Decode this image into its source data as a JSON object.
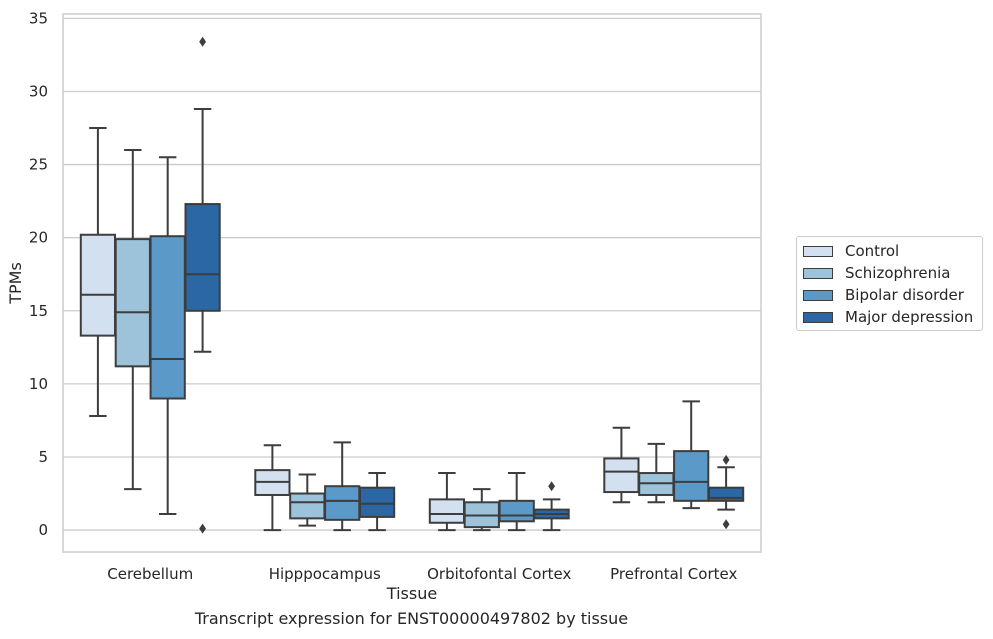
{
  "chart_data": {
    "type": "box",
    "title": "",
    "xlabel": "Tissue",
    "ylabel": "TPMs",
    "caption": "Transcript expression for ENST00000497802 by tissue",
    "ylim": [
      -1.5,
      35.3
    ],
    "yticks": [
      0,
      5,
      10,
      15,
      20,
      25,
      30,
      35
    ],
    "grid": true,
    "legend_position": "right",
    "categories": [
      "Cerebellum",
      "Hipppocampus",
      "Orbitofontal Cortex",
      "Prefrontal Cortex"
    ],
    "series": [
      {
        "name": "Control",
        "color": "#d2e0f0",
        "boxes": [
          {
            "whislo": 7.8,
            "q1": 13.3,
            "med": 16.1,
            "q3": 20.2,
            "whishi": 27.5,
            "fliers": []
          },
          {
            "whislo": 0.0,
            "q1": 2.4,
            "med": 3.3,
            "q3": 4.1,
            "whishi": 5.8,
            "fliers": []
          },
          {
            "whislo": 0.0,
            "q1": 0.5,
            "med": 1.1,
            "q3": 2.1,
            "whishi": 3.9,
            "fliers": []
          },
          {
            "whislo": 1.9,
            "q1": 2.6,
            "med": 4.0,
            "q3": 4.9,
            "whishi": 7.0,
            "fliers": []
          }
        ]
      },
      {
        "name": "Schizophrenia",
        "color": "#9cc3da",
        "boxes": [
          {
            "whislo": 2.8,
            "q1": 11.2,
            "med": 14.9,
            "q3": 19.9,
            "whishi": 26.0,
            "fliers": []
          },
          {
            "whislo": 0.3,
            "q1": 0.8,
            "med": 1.9,
            "q3": 2.5,
            "whishi": 3.8,
            "fliers": []
          },
          {
            "whislo": 0.0,
            "q1": 0.2,
            "med": 1.0,
            "q3": 1.9,
            "whishi": 2.8,
            "fliers": []
          },
          {
            "whislo": 1.9,
            "q1": 2.4,
            "med": 3.2,
            "q3": 3.9,
            "whishi": 5.9,
            "fliers": []
          }
        ]
      },
      {
        "name": "Bipolar disorder",
        "color": "#5b9ac8",
        "boxes": [
          {
            "whislo": 1.1,
            "q1": 9.0,
            "med": 11.7,
            "q3": 20.1,
            "whishi": 25.5,
            "fliers": []
          },
          {
            "whislo": 0.0,
            "q1": 0.7,
            "med": 2.0,
            "q3": 3.0,
            "whishi": 6.0,
            "fliers": []
          },
          {
            "whislo": 0.0,
            "q1": 0.6,
            "med": 1.0,
            "q3": 2.0,
            "whishi": 3.9,
            "fliers": []
          },
          {
            "whislo": 1.5,
            "q1": 2.0,
            "med": 3.3,
            "q3": 5.4,
            "whishi": 8.8,
            "fliers": []
          }
        ]
      },
      {
        "name": "Major depression",
        "color": "#2a67a4",
        "boxes": [
          {
            "whislo": 12.2,
            "q1": 15.0,
            "med": 17.5,
            "q3": 22.3,
            "whishi": 28.8,
            "fliers": [
              33.4,
              0.1
            ]
          },
          {
            "whislo": 0.0,
            "q1": 0.9,
            "med": 1.8,
            "q3": 2.9,
            "whishi": 3.9,
            "fliers": []
          },
          {
            "whislo": 0.0,
            "q1": 0.8,
            "med": 1.1,
            "q3": 1.4,
            "whishi": 2.1,
            "fliers": [
              3.0
            ]
          },
          {
            "whislo": 1.4,
            "q1": 2.0,
            "med": 2.2,
            "q3": 2.9,
            "whishi": 4.3,
            "fliers": [
              4.8,
              0.4
            ]
          }
        ]
      }
    ]
  }
}
